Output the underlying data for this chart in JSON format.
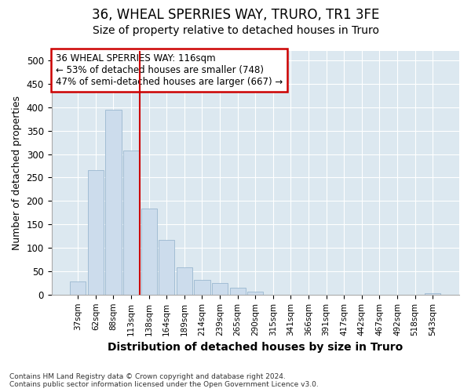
{
  "title": "36, WHEAL SPERRIES WAY, TRURO, TR1 3FE",
  "subtitle": "Size of property relative to detached houses in Truro",
  "xlabel": "Distribution of detached houses by size in Truro",
  "ylabel": "Number of detached properties",
  "categories": [
    "37sqm",
    "62sqm",
    "88sqm",
    "113sqm",
    "138sqm",
    "164sqm",
    "189sqm",
    "214sqm",
    "239sqm",
    "265sqm",
    "290sqm",
    "315sqm",
    "341sqm",
    "366sqm",
    "391sqm",
    "417sqm",
    "442sqm",
    "467sqm",
    "492sqm",
    "518sqm",
    "543sqm"
  ],
  "values": [
    28,
    265,
    395,
    308,
    183,
    116,
    58,
    32,
    25,
    14,
    6,
    0,
    0,
    0,
    0,
    0,
    0,
    0,
    0,
    0,
    3
  ],
  "bar_color": "#ccdcec",
  "bar_edge_color": "#9ab8d0",
  "vline_x": 3.5,
  "vline_color": "#cc0000",
  "annotation_line1": "36 WHEAL SPERRIES WAY: 116sqm",
  "annotation_line2": "← 53% of detached houses are smaller (748)",
  "annotation_line3": "47% of semi-detached houses are larger (667) →",
  "annotation_box_edgecolor": "#cc0000",
  "ylim": [
    0,
    520
  ],
  "yticks": [
    0,
    50,
    100,
    150,
    200,
    250,
    300,
    350,
    400,
    450,
    500
  ],
  "footer_line1": "Contains HM Land Registry data © Crown copyright and database right 2024.",
  "footer_line2": "Contains public sector information licensed under the Open Government Licence v3.0.",
  "bg_color": "#ffffff",
  "plot_bg_color": "#dce8f0",
  "grid_color": "#ffffff",
  "title_fontsize": 12,
  "subtitle_fontsize": 10,
  "xlabel_fontsize": 10,
  "ylabel_fontsize": 9
}
